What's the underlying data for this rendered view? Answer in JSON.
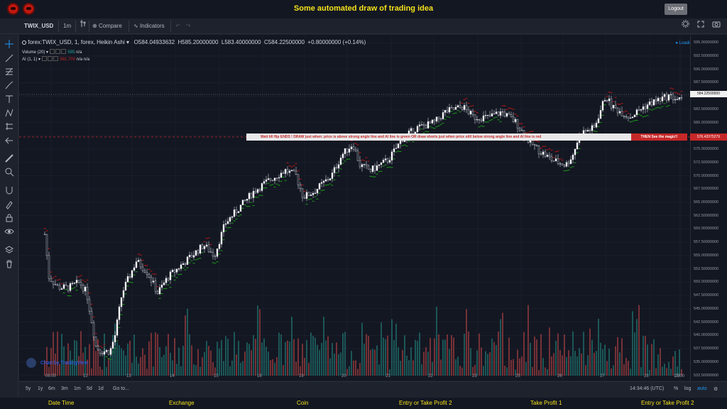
{
  "header": {
    "title": "Some automated draw of trading idea",
    "logout_label": "Logout"
  },
  "toolbar": {
    "symbol": "TWIX_USD",
    "interval": "1m",
    "compare_label": "Compare",
    "indicators_label": "Indicators"
  },
  "legend": {
    "main": "forex:TWIX_USD, 1, forex, Heikin Ashi",
    "o": "O584.04933632",
    "h": "H585.20000000",
    "l": "L583.40000000",
    "c": "C584.22500000",
    "chg": "+0.80000000 (+0.14%)",
    "vol_name": "Volume (20)",
    "vol_val1": "585",
    "vol_val2": "n/a",
    "ai_name": "AI (1, 1)",
    "ai_val1": "581.700",
    "ai_val2": "n/a",
    "ai_val3": "n/a"
  },
  "loading_text": "Loading",
  "banner": {
    "text": "Wait till flip ENDS !   DRAW just when: price is above strong angle line and AI line is green        OR       draw shorts just when price still below strong angle line and AI line is red",
    "magic": "THEN See the magic!!"
  },
  "price_labels": {
    "current": "584.22500000",
    "line": "576.42075279",
    "ticks": [
      "595.00000000",
      "592.50000000",
      "590.00000000",
      "587.50000000",
      "585.00000000",
      "582.50000000",
      "580.00000000",
      "577.50000000",
      "575.00000000",
      "572.50000000",
      "570.00000000",
      "567.50000000",
      "565.00000000",
      "562.50000000",
      "560.00000000",
      "557.50000000",
      "555.00000000",
      "552.50000000",
      "550.00000000",
      "547.50000000",
      "545.00000000",
      "542.50000000",
      "540.00000000",
      "537.50000000",
      "535.00000000",
      "532.50000000"
    ]
  },
  "time_labels": [
    "06:00",
    "12",
    "13",
    "14",
    "15",
    "18",
    "19",
    "20",
    "21",
    "22",
    "23",
    "25",
    "26",
    "27",
    "28",
    "29",
    "13:00"
  ],
  "attribution": "Chart by TradingView",
  "bottombar": {
    "ranges": [
      "5y",
      "1y",
      "6m",
      "3m",
      "1m",
      "5d",
      "1d"
    ],
    "goto": "Go to...",
    "clock": "14:34:46 (UTC)",
    "percent": "%",
    "log": "log",
    "auto": "auto"
  },
  "footer": {
    "items": [
      "Date Time",
      "Exchange",
      "Coin",
      "Entry or Take Profit 2",
      "Take Profit 1",
      "Entry or Take Profit 2"
    ]
  },
  "colors": {
    "accent_yellow": "#f5e21b",
    "up": "#26a69a",
    "down": "#ef5350",
    "ai_green": "#1b8a1b",
    "ai_red": "#a01818"
  },
  "icons": [
    "crosshair-icon",
    "trend-line-icon",
    "fib-icon",
    "brush-icon",
    "text-icon",
    "pattern-icon",
    "measure-icon",
    "back-arrow-icon",
    "ruler-icon",
    "zoom-icon",
    "magnet-icon",
    "lock-draw-icon",
    "lock-icon",
    "eye-icon",
    "layers-icon",
    "trash-icon"
  ]
}
